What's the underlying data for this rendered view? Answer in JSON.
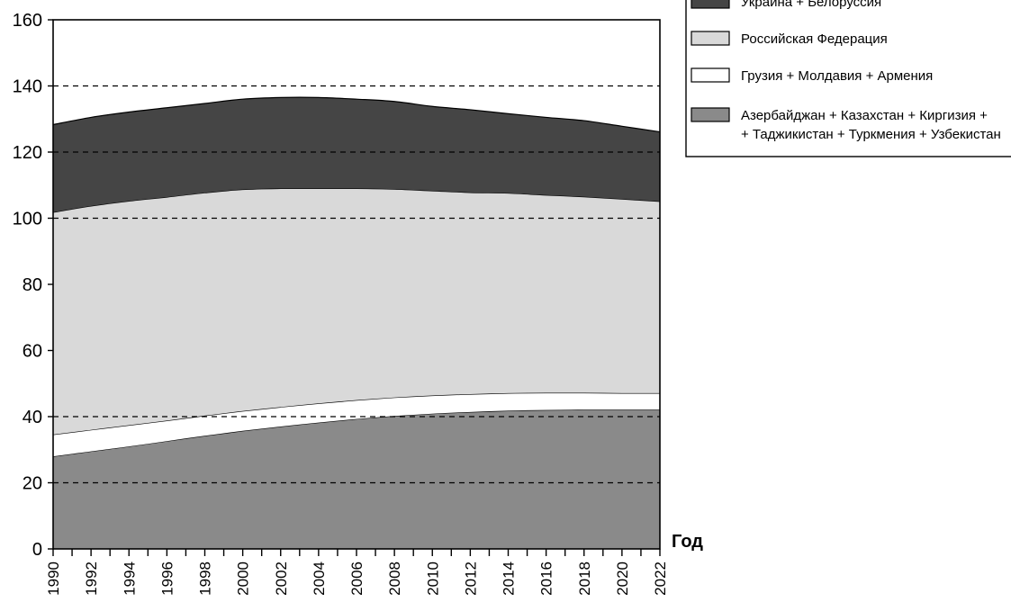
{
  "chart_data": {
    "type": "area",
    "stacked": true,
    "xlabel": "Год",
    "ylabel": "",
    "ylim": [
      0,
      160
    ],
    "yticks": [
      0,
      20,
      40,
      60,
      80,
      100,
      120,
      140,
      160
    ],
    "x": [
      1990,
      1992,
      1994,
      1996,
      1998,
      2000,
      2002,
      2004,
      2006,
      2008,
      2010,
      2012,
      2014,
      2016,
      2018,
      2020,
      2022
    ],
    "grid": "horizontal dashed lines at 20, 40, 100, 120, 140",
    "legend_position": "top-right",
    "series": [
      {
        "name": "Азербайджан + Казахстан + Киргизия + + Таджикистан + Туркмения + Узбекистан",
        "legend_lines": [
          "Азербайджан + Казахстан + Киргизия +",
          "+ Таджикистан + Туркмения + Узбекистан"
        ],
        "color": "#8a8a8a",
        "values": [
          28.0,
          29.5,
          31.0,
          32.6,
          34.2,
          35.7,
          37.0,
          38.2,
          39.3,
          40.2,
          40.9,
          41.4,
          41.8,
          42.0,
          42.1,
          42.1,
          42.1
        ]
      },
      {
        "name": "Грузия + Молдавия + Армения",
        "legend_lines": [
          "Грузия + Молдавия + Армения"
        ],
        "color": "#ffffff",
        "values": [
          6.6,
          6.5,
          6.4,
          6.2,
          6.1,
          6.0,
          5.9,
          5.8,
          5.7,
          5.6,
          5.5,
          5.4,
          5.3,
          5.2,
          5.1,
          5.0,
          5.0
        ]
      },
      {
        "name": "Российская Федерация",
        "legend_lines": [
          "Российская Федерация"
        ],
        "color": "#d9d9d9",
        "values": [
          67.2,
          67.7,
          67.8,
          67.6,
          67.4,
          67.0,
          66.1,
          65.0,
          64.0,
          63.0,
          61.9,
          61.0,
          60.5,
          59.8,
          59.3,
          58.7,
          58.0
        ]
      },
      {
        "name": "Украина + Белоруссия",
        "legend_lines": [
          "Украина + Белоруссия"
        ],
        "color": "#454545",
        "values": [
          26.5,
          26.8,
          26.9,
          27.0,
          27.0,
          27.3,
          27.5,
          27.5,
          27.0,
          26.5,
          25.5,
          25.0,
          24.0,
          23.5,
          23.0,
          22.0,
          21.0
        ]
      }
    ]
  }
}
